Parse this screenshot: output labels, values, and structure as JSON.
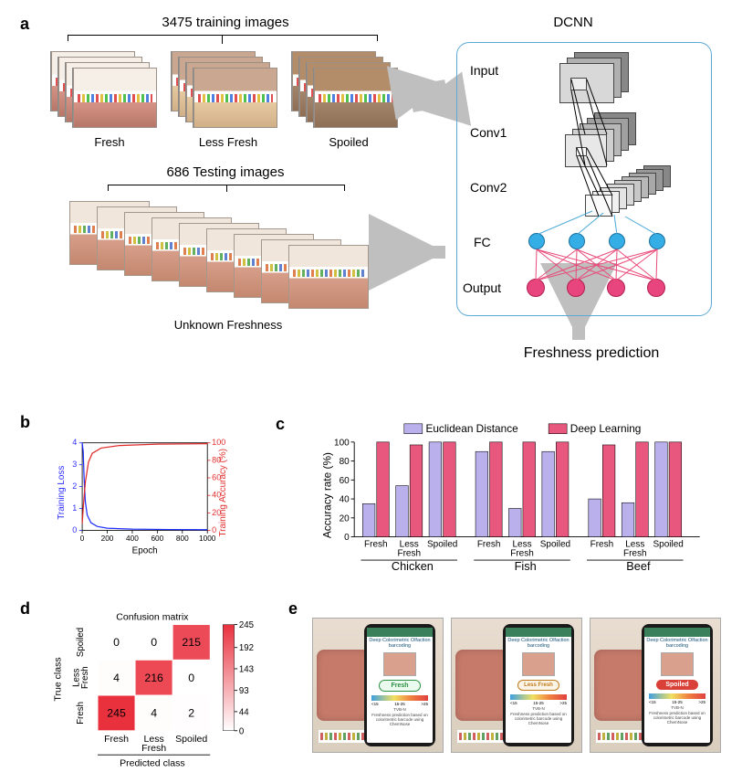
{
  "panelA": {
    "training_title": "3475 training images",
    "training_labels": [
      "Fresh",
      "Less Fresh",
      "Spoiled"
    ],
    "testing_title": "686 Testing images",
    "testing_label": "Unknown Freshness",
    "dcnn_title": "DCNN",
    "dcnn_layers": [
      "Input",
      "Conv1",
      "Conv2",
      "FC",
      "Output"
    ],
    "prediction_label": "Freshness prediction"
  },
  "panelB": {
    "y_left_label": "Training Loss",
    "y_right_label": "Training Accuracy (%)",
    "x_label": "Epoch",
    "xlim": [
      0,
      1000
    ],
    "xtick_step": 200,
    "ylim_left": [
      0,
      4
    ],
    "ytick_left_step": 1,
    "ylim_right": [
      0,
      100
    ],
    "ytick_right_step": 20,
    "colors": {
      "loss": "#2030ff",
      "accuracy": "#e02a2a"
    },
    "loss_points": [
      [
        0,
        4.0
      ],
      [
        8,
        3.6
      ],
      [
        15,
        2.4
      ],
      [
        25,
        1.3
      ],
      [
        40,
        0.7
      ],
      [
        70,
        0.35
      ],
      [
        120,
        0.18
      ],
      [
        200,
        0.1
      ],
      [
        400,
        0.06
      ],
      [
        700,
        0.04
      ],
      [
        1000,
        0.03
      ]
    ],
    "accuracy_points": [
      [
        0,
        8
      ],
      [
        10,
        30
      ],
      [
        25,
        55
      ],
      [
        50,
        78
      ],
      [
        80,
        88
      ],
      [
        150,
        94
      ],
      [
        300,
        97
      ],
      [
        600,
        98.5
      ],
      [
        1000,
        99
      ]
    ]
  },
  "panelC": {
    "y_label": "Accuracy rate (%)",
    "ylim": [
      0,
      100
    ],
    "ytick_step": 20,
    "legend": [
      "Euclidean Distance",
      "Deep Learning"
    ],
    "legend_colors": [
      "#b9b0ec",
      "#e8587e"
    ],
    "groups": [
      "Chicken",
      "Fish",
      "Beef"
    ],
    "categories": [
      "Fresh",
      "Less\nFresh",
      "Spoiled"
    ],
    "data_euclidean": {
      "Chicken": [
        35,
        54,
        100
      ],
      "Fish": [
        90,
        30,
        90
      ],
      "Beef": [
        40,
        36,
        100
      ]
    },
    "data_deeplearning": {
      "Chicken": [
        100,
        97,
        100
      ],
      "Fish": [
        100,
        100,
        100
      ],
      "Beef": [
        97,
        100,
        100
      ]
    }
  },
  "panelD": {
    "title": "Confusion matrix",
    "x_label": "Predicted class",
    "y_label": "True class",
    "classes": [
      "Fresh",
      "Less\nFresh",
      "Spoiled"
    ],
    "matrix_rows_true_by_pred": [
      [
        0,
        0,
        215
      ],
      [
        4,
        216,
        0
      ],
      [
        245,
        4,
        2
      ]
    ],
    "row_labels_top_to_bottom": [
      "Spoiled",
      "Less\nFresh",
      "Fresh"
    ],
    "colorbar": {
      "min": 0,
      "max": 245,
      "ticks": [
        0,
        44,
        93,
        143,
        192,
        245
      ]
    },
    "cell_high_color": "#e9313e",
    "cell_low_color": "#ffffff"
  },
  "panelE": {
    "app_title": "Deep Colorimetric Olfaction barcoding",
    "scale_ticks": [
      "<15",
      "15-25",
      ">25"
    ],
    "scale_label": "TVB-N",
    "footer_lines": [
      "Freshness prediction based on colorimetric barcode using ChemNose"
    ],
    "results": [
      {
        "label": "Fresh",
        "style": "fresh-btn"
      },
      {
        "label": "Less Fresh",
        "style": "lessfresh-btn"
      },
      {
        "label": "Spoiled",
        "style": "spoiled-btn"
      }
    ]
  },
  "labels": {
    "a": "a",
    "b": "b",
    "c": "c",
    "d": "d",
    "e": "e"
  }
}
